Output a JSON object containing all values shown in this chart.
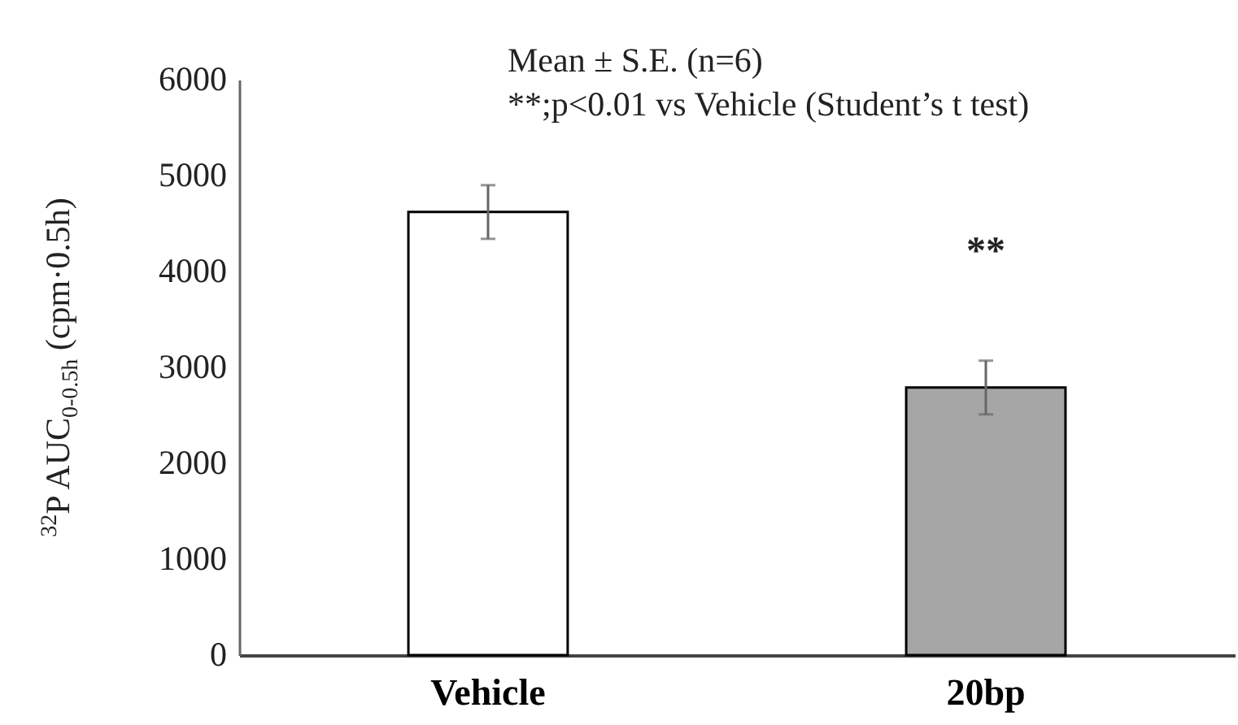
{
  "chart_data": {
    "type": "bar",
    "ylabel": "$^{32}$P AUC$_{0-0.5h}$ (cpm·0.5h)",
    "categories": [
      "Vehicle",
      "20bp"
    ],
    "values": [
      4620,
      2790
    ],
    "colors": [
      "#ffffff",
      "#a6a6a6"
    ],
    "errors": [
      280,
      280
    ],
    "ylim": [
      0,
      6000
    ],
    "yticks": [
      0,
      1000,
      2000,
      3000,
      4000,
      5000,
      6000
    ],
    "grid": false,
    "legend": false,
    "annotations": [
      "Mean ± S.E. (n=6)",
      "**;p<0.01 vs Vehicle (Student’s t  test)",
      "**"
    ]
  }
}
